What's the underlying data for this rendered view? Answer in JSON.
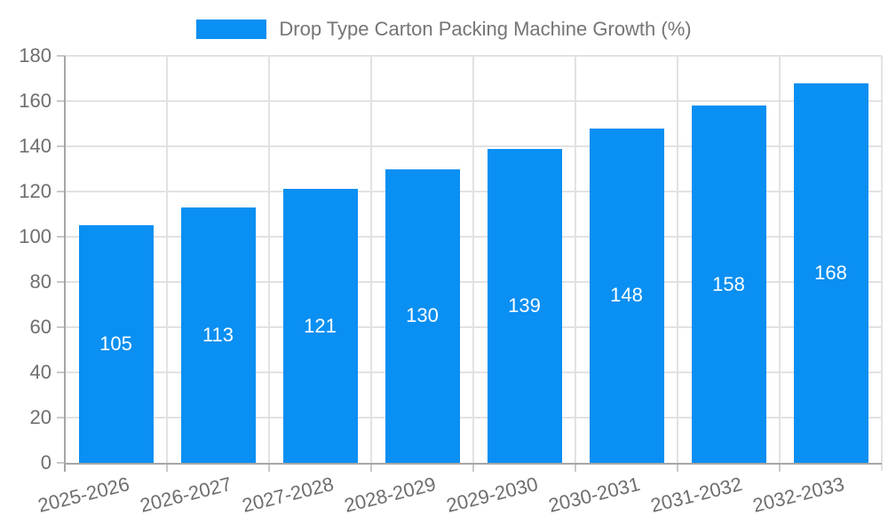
{
  "legend": {
    "label": "Drop Type Carton Packing Machine Growth (%)"
  },
  "chart_data": {
    "type": "bar",
    "title": "Drop Type Carton Packing Machine Growth (%)",
    "categories": [
      "2025-2026",
      "2026-2027",
      "2027-2028",
      "2028-2029",
      "2029-2030",
      "2030-2031",
      "2031-2032",
      "2032-2033"
    ],
    "series": [
      {
        "name": "Drop Type Carton Packing Machine Growth (%)",
        "values": [
          105,
          113,
          121,
          130,
          139,
          148,
          158,
          168
        ]
      }
    ],
    "xlabel": "",
    "ylabel": "",
    "ylim": [
      0,
      180
    ],
    "yticks": [
      0,
      20,
      40,
      60,
      80,
      100,
      120,
      140,
      160,
      180
    ],
    "grid": "horizontal and vertical light gridlines",
    "legend_position": "top-center",
    "value_labels": "centered inside bars, white",
    "x_label_rotation_deg": -14,
    "colors": {
      "bar": "#0a8ff2",
      "value_label": "#ffffff",
      "axis_text": "#6e6e6e",
      "legend_text": "#757575",
      "gridline": "#e2e2e2",
      "axis_line": "#a6a6a6",
      "tick": "#c9c9c9",
      "background": "#ffffff"
    }
  }
}
